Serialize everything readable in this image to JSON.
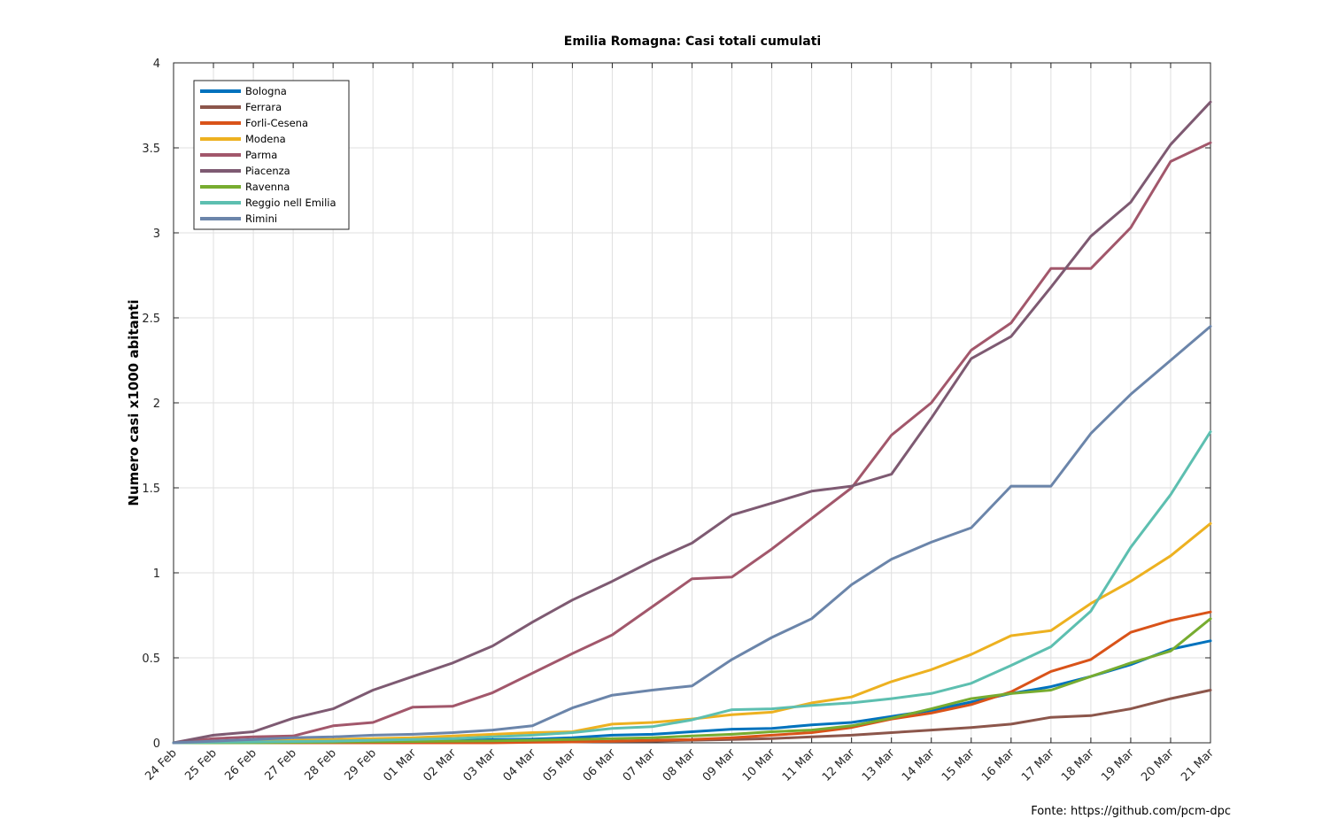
{
  "chart_data": {
    "type": "line",
    "title": "Emilia Romagna: Casi totali cumulati",
    "xlabel": "",
    "ylabel": "Numero casi x1000 abitanti",
    "source": "Fonte: https://github.com/pcm-dpc",
    "categories": [
      "24 Feb",
      "25 Feb",
      "26 Feb",
      "27 Feb",
      "28 Feb",
      "29 Feb",
      "01 Mar",
      "02 Mar",
      "03 Mar",
      "04 Mar",
      "05 Mar",
      "06 Mar",
      "07 Mar",
      "08 Mar",
      "09 Mar",
      "10 Mar",
      "11 Mar",
      "12 Mar",
      "13 Mar",
      "14 Mar",
      "15 Mar",
      "16 Mar",
      "17 Mar",
      "18 Mar",
      "19 Mar",
      "20 Mar",
      "21 Mar"
    ],
    "ylim": [
      0,
      4
    ],
    "yticks": [
      "0",
      "0.5",
      "1",
      "1.5",
      "2",
      "2.5",
      "3",
      "3.5",
      "4"
    ],
    "grid": true,
    "legend_position": "top-left",
    "series": [
      {
        "name": "Bologna",
        "color": "#0072BD",
        "values": [
          0,
          0.002,
          0.004,
          0.006,
          0.008,
          0.01,
          0.012,
          0.015,
          0.018,
          0.022,
          0.03,
          0.045,
          0.05,
          0.065,
          0.08,
          0.085,
          0.105,
          0.12,
          0.155,
          0.19,
          0.24,
          0.29,
          0.33,
          0.39,
          0.46,
          0.55,
          0.6
        ]
      },
      {
        "name": "Ferrara",
        "color": "#8C564B",
        "values": [
          0,
          0,
          0,
          0,
          0,
          0,
          0.002,
          0.003,
          0.004,
          0.005,
          0.006,
          0.008,
          0.01,
          0.015,
          0.02,
          0.025,
          0.035,
          0.045,
          0.06,
          0.075,
          0.09,
          0.11,
          0.15,
          0.16,
          0.2,
          0.26,
          0.31
        ]
      },
      {
        "name": "Forli-Cesena",
        "color": "#D95319",
        "values": [
          0,
          0,
          0,
          0,
          0,
          0,
          0,
          0,
          0,
          0.003,
          0.005,
          0.01,
          0.015,
          0.02,
          0.03,
          0.045,
          0.06,
          0.09,
          0.14,
          0.175,
          0.225,
          0.3,
          0.42,
          0.49,
          0.65,
          0.72,
          0.77
        ]
      },
      {
        "name": "Modena",
        "color": "#EDB120",
        "values": [
          0,
          0.005,
          0.01,
          0.015,
          0.02,
          0.025,
          0.03,
          0.04,
          0.05,
          0.06,
          0.065,
          0.11,
          0.12,
          0.14,
          0.165,
          0.18,
          0.235,
          0.27,
          0.36,
          0.43,
          0.52,
          0.63,
          0.66,
          0.82,
          0.95,
          1.1,
          1.29
        ]
      },
      {
        "name": "Parma",
        "color": "#A2576B",
        "values": [
          0,
          0.025,
          0.035,
          0.04,
          0.1,
          0.12,
          0.21,
          0.215,
          0.295,
          0.41,
          0.525,
          0.635,
          0.8,
          0.965,
          0.975,
          1.14,
          1.32,
          1.5,
          1.81,
          2.0,
          2.31,
          2.47,
          2.79,
          2.79,
          3.03,
          3.42,
          3.53
        ]
      },
      {
        "name": "Piacenza",
        "color": "#7E5A72",
        "values": [
          0,
          0.045,
          0.065,
          0.145,
          0.2,
          0.31,
          0.39,
          0.47,
          0.57,
          0.71,
          0.84,
          0.95,
          1.07,
          1.175,
          1.34,
          1.41,
          1.48,
          1.51,
          1.58,
          1.91,
          2.26,
          2.39,
          2.68,
          2.98,
          3.18,
          3.52,
          3.77
        ]
      },
      {
        "name": "Ravenna",
        "color": "#77AC30",
        "values": [
          0,
          0,
          0,
          0.002,
          0.004,
          0.006,
          0.008,
          0.01,
          0.012,
          0.015,
          0.02,
          0.025,
          0.03,
          0.04,
          0.05,
          0.065,
          0.075,
          0.1,
          0.145,
          0.2,
          0.26,
          0.29,
          0.31,
          0.39,
          0.47,
          0.54,
          0.73
        ]
      },
      {
        "name": "Reggio nell Emilia",
        "color": "#5DBFB0",
        "values": [
          0,
          0.003,
          0.005,
          0.008,
          0.01,
          0.015,
          0.02,
          0.025,
          0.035,
          0.045,
          0.06,
          0.085,
          0.095,
          0.135,
          0.195,
          0.2,
          0.22,
          0.235,
          0.26,
          0.29,
          0.35,
          0.455,
          0.565,
          0.775,
          1.15,
          1.46,
          1.83
        ]
      },
      {
        "name": "Rimini",
        "color": "#6B85AA",
        "values": [
          0,
          0.01,
          0.02,
          0.03,
          0.035,
          0.045,
          0.05,
          0.06,
          0.075,
          0.1,
          0.205,
          0.28,
          0.31,
          0.335,
          0.49,
          0.62,
          0.73,
          0.93,
          1.08,
          1.18,
          1.265,
          1.51,
          1.51,
          1.82,
          2.05,
          2.25,
          2.45
        ]
      }
    ]
  }
}
